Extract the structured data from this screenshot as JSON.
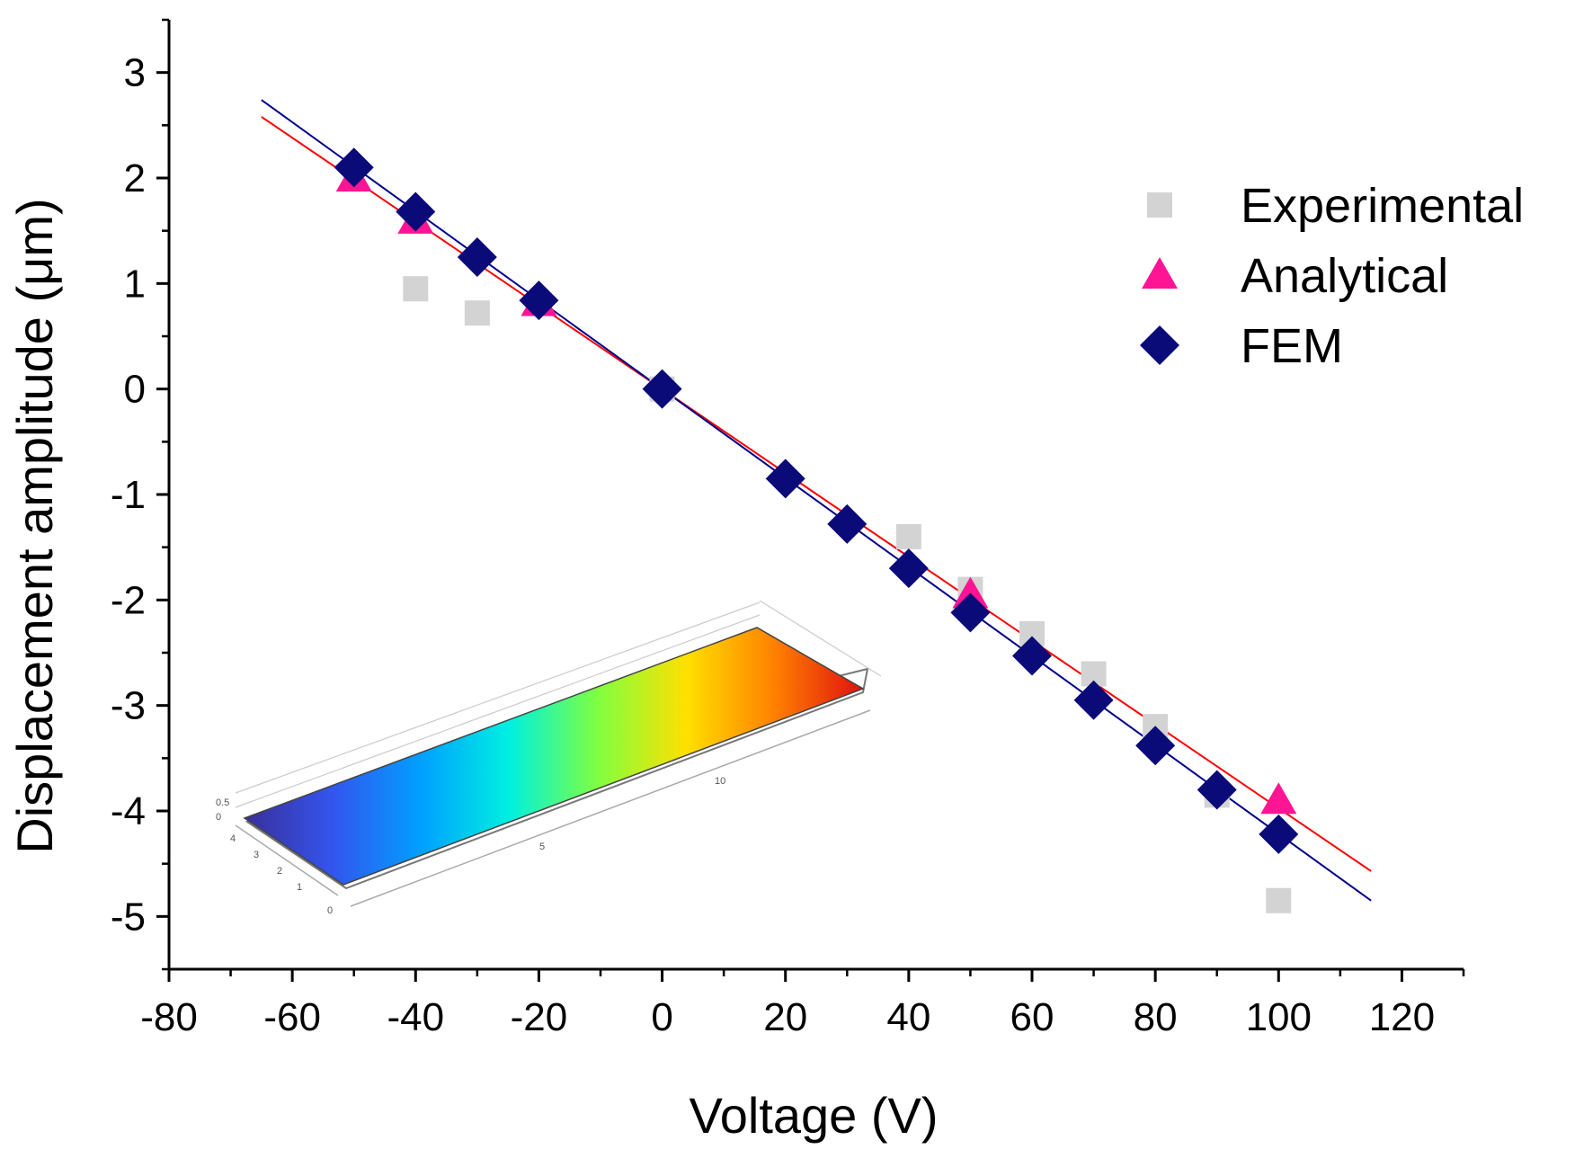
{
  "chart_data": {
    "type": "scatter",
    "title": "",
    "xlabel": "Voltage (V)",
    "ylabel": "Displacement amplitude (μm)",
    "xlim": [
      -80,
      130
    ],
    "ylim": [
      -5.5,
      3.5
    ],
    "xticks": [
      -80,
      -60,
      -40,
      -20,
      0,
      20,
      40,
      60,
      80,
      100,
      120
    ],
    "yticks": [
      -5,
      -4,
      -3,
      -2,
      -1,
      0,
      1,
      2,
      3
    ],
    "xtick_labels": [
      "-80",
      "-60",
      "-40",
      "-20",
      "0",
      "20",
      "40",
      "60",
      "80",
      "100",
      "120"
    ],
    "ytick_labels": [
      "-5",
      "-4",
      "-3",
      "-2",
      "-1",
      "0",
      "1",
      "2",
      "3"
    ],
    "grid": false,
    "legend_position": "top-right",
    "series": [
      {
        "name": "Experimental",
        "marker": "square",
        "color": "#d3d3d3",
        "x": [
          -40,
          -30,
          0,
          40,
          50,
          60,
          70,
          80,
          90,
          100
        ],
        "y": [
          0.95,
          0.72,
          0.0,
          -1.4,
          -1.9,
          -2.32,
          -2.7,
          -3.2,
          -3.85,
          -4.85
        ]
      },
      {
        "name": "Analytical",
        "marker": "triangle",
        "color": "#ff1493",
        "x": [
          -50,
          -40,
          -20,
          50,
          100
        ],
        "y": [
          2.0,
          1.6,
          0.82,
          -1.95,
          -3.9
        ]
      },
      {
        "name": "FEM",
        "marker": "diamond",
        "color": "#0a0a78",
        "x": [
          -50,
          -40,
          -30,
          -20,
          0,
          20,
          30,
          40,
          50,
          60,
          70,
          80,
          90,
          100
        ],
        "y": [
          2.1,
          1.68,
          1.25,
          0.84,
          0.0,
          -0.85,
          -1.28,
          -1.7,
          -2.12,
          -2.53,
          -2.95,
          -3.38,
          -3.8,
          -4.22
        ]
      }
    ],
    "fit_lines": [
      {
        "name": "Analytical fit",
        "color": "#ff0000",
        "x": [
          -65,
          115
        ],
        "y": [
          2.58,
          -4.57
        ]
      },
      {
        "name": "FEM fit",
        "color": "#00008b",
        "x": [
          -65,
          115
        ],
        "y": [
          2.74,
          -4.85
        ]
      }
    ],
    "inset": {
      "description_label": "FEM displacement contour",
      "axis_labels_x": [
        "5",
        "10"
      ],
      "axis_labels_y": [
        "0",
        "1",
        "2",
        "3",
        "4"
      ],
      "axis_labels_z": [
        "0",
        "0.5"
      ],
      "colormap": [
        "#3a2f9a",
        "#3355ee",
        "#00a0ff",
        "#00f0e0",
        "#80ff40",
        "#ffe000",
        "#ff8000",
        "#e01010"
      ]
    }
  }
}
